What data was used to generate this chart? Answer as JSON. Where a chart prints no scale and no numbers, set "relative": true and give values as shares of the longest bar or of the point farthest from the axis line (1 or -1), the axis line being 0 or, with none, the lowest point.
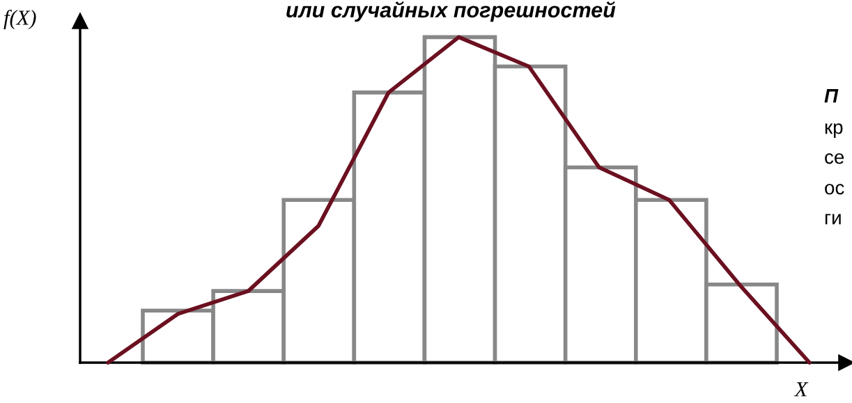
{
  "chart_data": [
    {
      "type": "bar",
      "title": "или случайных погрешностей",
      "xlabel": "X",
      "ylabel": "f(X)",
      "relative": true,
      "tick_labels": false,
      "categories": [
        null,
        null,
        null,
        null,
        null,
        null,
        null,
        null,
        null
      ],
      "values": [
        0.16,
        0.22,
        0.5,
        0.83,
        1.0,
        0.91,
        0.6,
        0.5,
        0.24
      ],
      "color": "#ffffff",
      "annotations": [
        "П",
        "кр",
        "се",
        "ос",
        "ги"
      ]
    },
    {
      "type": "line",
      "relative": true,
      "tick_labels": false,
      "categories": [
        null,
        null,
        null,
        null,
        null,
        null,
        null,
        null,
        null,
        null,
        null
      ],
      "values": [
        0,
        0.15,
        0.22,
        0.42,
        0.83,
        1.0,
        0.91,
        0.6,
        0.5,
        0.24,
        0
      ],
      "color": "#6b1020"
    }
  ]
}
